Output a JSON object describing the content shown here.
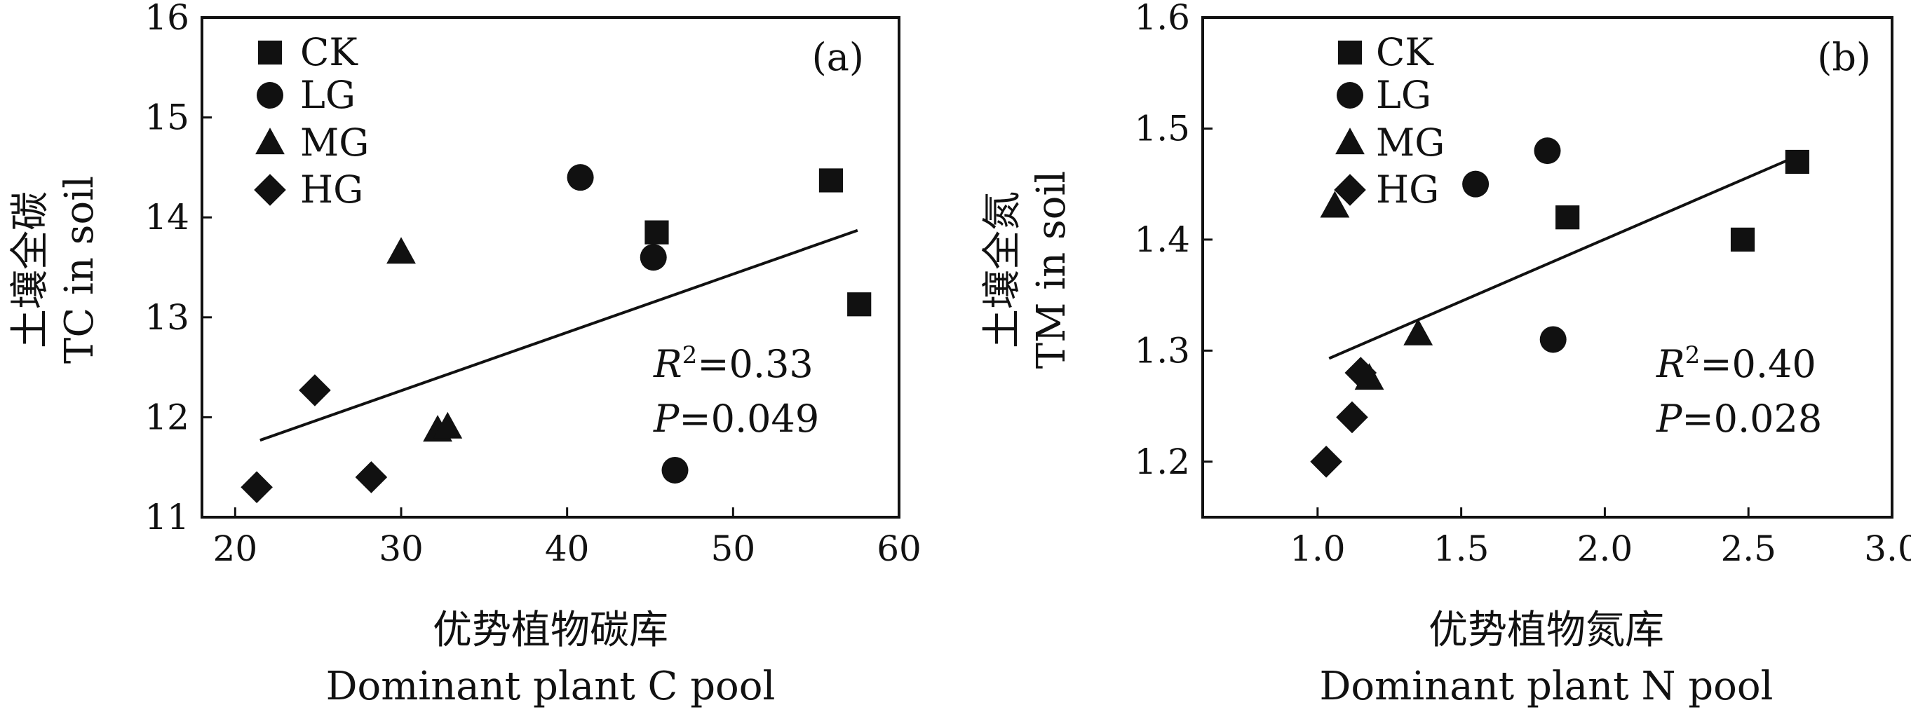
{
  "colors": {
    "ink": "#111111",
    "background": "#ffffff"
  },
  "chart_data": [
    {
      "type": "scatter",
      "panel_label": "(a)",
      "x_title_cn": "优势植物碳库",
      "x_title_en": "Dominant plant C pool",
      "y_title_cn": "土壤全碳",
      "y_title_en": "TC in soil",
      "xlim": [
        18,
        60
      ],
      "ylim": [
        11,
        16
      ],
      "xticks": [
        "20",
        "30",
        "40",
        "50",
        "60"
      ],
      "yticks": [
        "11",
        "12",
        "13",
        "14",
        "15",
        "16"
      ],
      "legend_position": "top-left",
      "stats": {
        "r2_symbol": "R",
        "r2_sup": "2",
        "r2_value": "=0.33",
        "p_symbol": "P",
        "p_value": "=0.049"
      },
      "fit_line": {
        "x": [
          21.5,
          57.5
        ],
        "y": [
          11.77,
          13.87
        ]
      },
      "series": [
        {
          "name": "CK",
          "marker": "square",
          "points": [
            [
              45.4,
              13.85
            ],
            [
              55.9,
              14.37
            ],
            [
              57.6,
              13.13
            ]
          ]
        },
        {
          "name": "LG",
          "marker": "circle",
          "points": [
            [
              40.8,
              14.4
            ],
            [
              45.2,
              13.6
            ],
            [
              46.5,
              11.47
            ]
          ]
        },
        {
          "name": "MG",
          "marker": "triangle",
          "points": [
            [
              30.0,
              13.65
            ],
            [
              32.2,
              11.87
            ],
            [
              32.8,
              11.9
            ]
          ]
        },
        {
          "name": "HG",
          "marker": "diamond",
          "points": [
            [
              21.3,
              11.3
            ],
            [
              24.8,
              12.27
            ],
            [
              28.2,
              11.4
            ]
          ]
        }
      ]
    },
    {
      "type": "scatter",
      "panel_label": "(b)",
      "x_title_cn": "优势植物氮库",
      "x_title_en": "Dominant plant N pool",
      "y_title_cn": "土壤全氮",
      "y_title_en": "TM in soil",
      "xlim": [
        0.6,
        3.0
      ],
      "ylim": [
        1.15,
        1.6
      ],
      "xticks": [
        "1.0",
        "1.5",
        "2.0",
        "2.5",
        "3.0"
      ],
      "yticks": [
        "1.2",
        "1.3",
        "1.4",
        "1.5",
        "1.6"
      ],
      "legend_position": "top-left",
      "stats": {
        "r2_symbol": "R",
        "r2_sup": "2",
        "r2_value": "=0.40",
        "p_symbol": "P",
        "p_value": "=0.028"
      },
      "fit_line": {
        "x": [
          1.04,
          2.65
        ],
        "y": [
          1.293,
          1.473
        ]
      },
      "series": [
        {
          "name": "CK",
          "marker": "square",
          "points": [
            [
              1.87,
              1.42
            ],
            [
              2.48,
              1.4
            ],
            [
              2.67,
              1.47
            ]
          ]
        },
        {
          "name": "LG",
          "marker": "circle",
          "points": [
            [
              1.55,
              1.45
            ],
            [
              1.8,
              1.48
            ],
            [
              1.82,
              1.31
            ]
          ]
        },
        {
          "name": "MG",
          "marker": "triangle",
          "points": [
            [
              1.06,
              1.43
            ],
            [
              1.18,
              1.275
            ],
            [
              1.35,
              1.315
            ]
          ]
        },
        {
          "name": "HG",
          "marker": "diamond",
          "points": [
            [
              1.03,
              1.2
            ],
            [
              1.12,
              1.24
            ],
            [
              1.15,
              1.28
            ]
          ]
        }
      ]
    }
  ]
}
